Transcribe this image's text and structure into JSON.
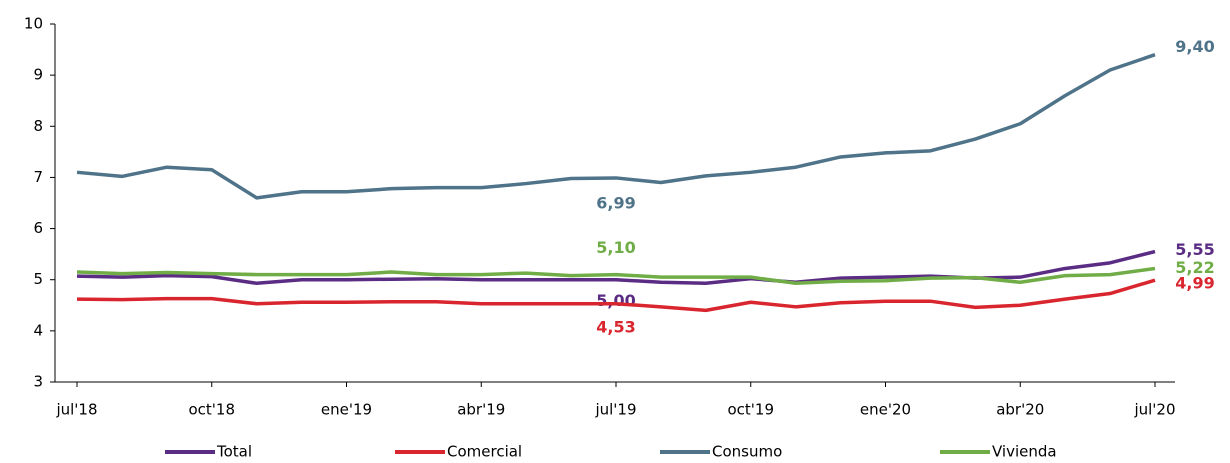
{
  "chart_data": {
    "type": "line",
    "categories": [
      "jul'18",
      null,
      null,
      "oct'18",
      null,
      null,
      "ene'19",
      null,
      null,
      "abr'19",
      null,
      null,
      "jul'19",
      null,
      null,
      "oct'19",
      null,
      null,
      "ene'20",
      null,
      null,
      "abr'20",
      null,
      null,
      "jul'20"
    ],
    "ylim": [
      3,
      10
    ],
    "yticks": [
      3,
      4,
      5,
      6,
      7,
      8,
      9,
      10
    ],
    "grid": false,
    "legend": "bottom",
    "series": [
      {
        "name": "Total",
        "color": "#5b2c83",
        "values": [
          5.07,
          5.05,
          5.08,
          5.06,
          4.93,
          5.0,
          5.0,
          5.01,
          5.02,
          5.0,
          5.0,
          5.0,
          5.0,
          4.95,
          4.93,
          5.02,
          4.95,
          5.03,
          5.05,
          5.07,
          5.03,
          5.05,
          5.22,
          5.33,
          5.55
        ],
        "value_labels": [
          null,
          null,
          null,
          null,
          null,
          null,
          null,
          null,
          null,
          null,
          null,
          null,
          "5,00",
          null,
          null,
          null,
          null,
          null,
          null,
          null,
          null,
          null,
          null,
          null,
          "5,55"
        ]
      },
      {
        "name": "Comercial",
        "color": "#d9262e",
        "values": [
          4.62,
          4.61,
          4.63,
          4.63,
          4.53,
          4.56,
          4.56,
          4.57,
          4.57,
          4.53,
          4.53,
          4.53,
          4.53,
          4.47,
          4.4,
          4.56,
          4.47,
          4.55,
          4.58,
          4.58,
          4.46,
          4.5,
          4.62,
          4.73,
          4.99
        ],
        "value_labels": [
          null,
          null,
          null,
          null,
          null,
          null,
          null,
          null,
          null,
          null,
          null,
          null,
          "4,53",
          null,
          null,
          null,
          null,
          null,
          null,
          null,
          null,
          null,
          null,
          null,
          "4,99"
        ]
      },
      {
        "name": "Consumo",
        "color": "#4f7389",
        "values": [
          7.1,
          7.02,
          7.2,
          7.15,
          6.6,
          6.72,
          6.72,
          6.78,
          6.8,
          6.8,
          6.88,
          6.98,
          6.99,
          6.9,
          7.03,
          7.1,
          7.2,
          7.4,
          7.48,
          7.52,
          7.75,
          8.05,
          8.6,
          9.1,
          9.4
        ],
        "value_labels": [
          null,
          null,
          null,
          null,
          null,
          null,
          null,
          null,
          null,
          null,
          null,
          null,
          "6,99",
          null,
          null,
          null,
          null,
          null,
          null,
          null,
          null,
          null,
          null,
          null,
          "9,40"
        ]
      },
      {
        "name": "Vivienda",
        "color": "#70ad47",
        "values": [
          5.15,
          5.12,
          5.14,
          5.12,
          5.1,
          5.1,
          5.1,
          5.15,
          5.1,
          5.1,
          5.13,
          5.08,
          5.1,
          5.05,
          5.05,
          5.05,
          4.93,
          4.97,
          4.98,
          5.03,
          5.04,
          4.95,
          5.08,
          5.1,
          5.22
        ],
        "value_labels": [
          null,
          null,
          null,
          null,
          null,
          null,
          null,
          null,
          null,
          null,
          null,
          null,
          "5,10",
          null,
          null,
          null,
          null,
          null,
          null,
          null,
          null,
          null,
          null,
          null,
          "5,22"
        ]
      }
    ]
  }
}
